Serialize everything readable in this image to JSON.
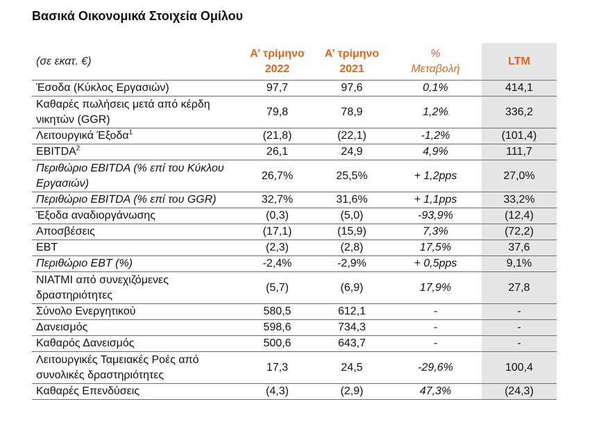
{
  "title": "Βασικά Οικονομικά Στοιχεία Ομίλου",
  "header": {
    "unit": "(σε εκατ. €)",
    "q1_2022": "Α’ τρίμηνο 2022",
    "q1_2021": "Α’ τρίμηνο 2021",
    "change_line1": "%",
    "change_line2": "Μεταβολή",
    "ltm": "LTM"
  },
  "rows": [
    {
      "label": "Έσοδα (Κύκλος Εργασιών)",
      "q22": "97,7",
      "q21": "97,6",
      "pct": "0,1%",
      "ltm": "414,1"
    },
    {
      "label": "Καθαρές πωλήσεις μετά από κέρδη νικητών (GGR)",
      "q22": "79,8",
      "q21": "78,9",
      "pct": "1,2%",
      "ltm": "336,2"
    },
    {
      "label": "Λειτουργικά Έξοδα",
      "sup": "1",
      "q22": "(21,8)",
      "q21": "(22,1)",
      "pct": "-1,2%",
      "ltm": "(101,4)"
    },
    {
      "label": "EBITDA",
      "sup": "2",
      "q22": "26,1",
      "q21": "24,9",
      "pct": "4,9%",
      "ltm": "111,7"
    },
    {
      "label": "Περιθώριο EBITDA (% επί του Κύκλου Εργασιών)",
      "q22": "26,7%",
      "q21": "25,5%",
      "pct": "+ 1,2pps",
      "ltm": "27,0%"
    },
    {
      "label": "Περιθώριο EBITDA (% επί του GGR)",
      "q22": "32,7%",
      "q21": "31,6%",
      "pct": "+ 1,1pps",
      "ltm": "33,2%"
    },
    {
      "label": "Έξοδα αναδιοργάνωσης",
      "q22": "(0,3)",
      "q21": "(5,0)",
      "pct": "-93,9%",
      "ltm": "(12,4)"
    },
    {
      "label": "Αποσβέσεις",
      "q22": "(17,1)",
      "q21": "(15,9)",
      "pct": "7,3%",
      "ltm": "(72,2)"
    },
    {
      "label": "EBT",
      "q22": "(2,3)",
      "q21": "(2,8)",
      "pct": "17,5%",
      "ltm": "37,6"
    },
    {
      "label": "Περιθώριο EBT (%)",
      "q22": "-2,4%",
      "q21": "-2,9%",
      "pct": "+ 0,5pps",
      "ltm": "9,1%"
    },
    {
      "label": "ΝΙΑΤΜΙ από συνεχιζόμενες δραστηριότητες",
      "q22": "(5,7)",
      "q21": "(6,9)",
      "pct": "17,9%",
      "ltm": "27,8"
    },
    {
      "label": "Σύνολο Ενεργητικού",
      "q22": "580,5",
      "q21": "612,1",
      "pct": "-",
      "ltm": "-"
    },
    {
      "label": "Δανεισμός",
      "q22": "598,6",
      "q21": "734,3",
      "pct": "-",
      "ltm": "-"
    },
    {
      "label": "Καθαρός Δανεισμός",
      "q22": "500,6",
      "q21": "643,7",
      "pct": "-",
      "ltm": "-"
    },
    {
      "label": "Λειτουργικές Ταμειακές Ροές από συνολικές δραστηριότητες",
      "q22": "17,3",
      "q21": "24,5",
      "pct": "-29,6%",
      "ltm": "100,4"
    },
    {
      "label": "Καθαρές Επενδύσεις",
      "q22": "(4,3)",
      "q21": "(2,9)",
      "pct": "47,3%",
      "ltm": "(24,3)"
    }
  ]
}
